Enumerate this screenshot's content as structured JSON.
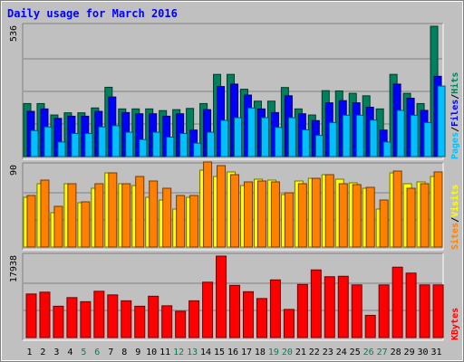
{
  "chart_data": {
    "title": "Daily usage for March 2016",
    "x": [
      "1",
      "2",
      "3",
      "4",
      "5",
      "6",
      "7",
      "8",
      "9",
      "10",
      "11",
      "12",
      "13",
      "14",
      "15",
      "16",
      "17",
      "18",
      "19",
      "20",
      "21",
      "22",
      "23",
      "24",
      "25",
      "26",
      "27",
      "28",
      "29",
      "30",
      "31"
    ],
    "weekend_days": [
      "5",
      "6",
      "12",
      "13",
      "19",
      "20",
      "26",
      "27"
    ],
    "panels": [
      {
        "type": "bar",
        "ymax_label": "536",
        "ymax": 536,
        "axis_title_parts": [
          "Pages",
          "/",
          "Files",
          "/",
          "Hits"
        ],
        "series": [
          {
            "name": "Hits",
            "color": "#00805c",
            "values": [
              218,
              218,
              171,
              180,
              180,
              200,
              285,
              196,
              196,
              196,
              189,
              193,
              198,
              218,
              338,
              338,
              277,
              228,
              228,
              284,
              196,
              171,
              271,
              270,
              260,
              250,
              196,
              338,
              260,
              218,
              536
            ]
          },
          {
            "name": "Files",
            "color": "#0000ff",
            "values": [
              186,
              196,
              157,
              166,
              166,
              186,
              245,
              181,
              176,
              176,
              166,
              176,
              109,
              193,
              288,
              298,
              253,
              196,
              181,
              250,
              176,
              148,
              221,
              230,
              221,
              203,
              109,
              298,
              240,
              190,
              330
            ]
          },
          {
            "name": "Pages",
            "color": "#00c0ff",
            "values": [
              107,
              122,
              60,
              95,
              95,
              122,
              127,
              100,
              70,
              100,
              80,
              95,
              55,
              100,
              149,
              160,
              200,
              160,
              120,
              160,
              110,
              87,
              140,
              170,
              170,
              150,
              60,
              190,
              170,
              140,
              290
            ]
          }
        ]
      },
      {
        "type": "bar",
        "ymax_label": "90",
        "ymax": 90,
        "axis_title_parts": [
          "Sites",
          "/",
          "Visits"
        ],
        "series": [
          {
            "name": "Visits",
            "color": "#ffff00",
            "values": [
              55,
              70,
              38,
              70,
              49,
              65,
              82,
              70,
              68,
              55,
              52,
              42,
              55,
              85,
              78,
              83,
              68,
              75,
              74,
              58,
              73,
              76,
              80,
              75,
              71,
              65,
              42,
              82,
              70,
              72,
              78
            ]
          },
          {
            "name": "Sites",
            "color": "#ff8000",
            "values": [
              57,
              74,
              45,
              70,
              50,
              70,
              82,
              70,
              78,
              73,
              65,
              57,
              57,
              94,
              90,
              80,
              72,
              73,
              72,
              60,
              70,
              76,
              80,
              70,
              69,
              66,
              52,
              84,
              65,
              70,
              83
            ]
          }
        ]
      },
      {
        "type": "bar",
        "ymax_label": "17938",
        "ymax": 17938,
        "axis_title_parts": [
          "KBytes"
        ],
        "series": [
          {
            "name": "KBytes",
            "color": "#ff0000",
            "values": [
              9600,
              10000,
              6900,
              8800,
              7900,
              10200,
              9400,
              8100,
              6900,
              9100,
              7000,
              5800,
              8100,
              12200,
              17938,
              11500,
              10100,
              8600,
              12700,
              6200,
              11700,
              14900,
              13400,
              13500,
              11600,
              4900,
              11600,
              15500,
              14200,
              11600,
              11600
            ]
          }
        ]
      }
    ]
  }
}
